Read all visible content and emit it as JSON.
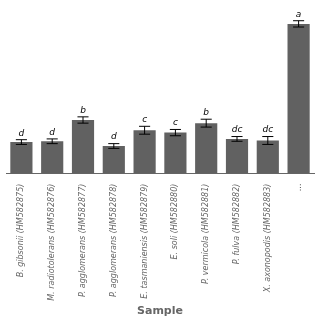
{
  "chart_data": {
    "type": "bar",
    "xlabel": "Sample",
    "categories": [
      "B. gibsonii (HM582875)",
      "M. radiotolerans (HM582876)",
      "P. agglomerans (HM582877)",
      "P. agglomerans (HM582878)",
      "E. tasmaniensis (HM582879)",
      "E. soli (HM582880)",
      "P. vermicola (HM582881)",
      "P. fulva (HM582882)",
      "X. axonopodis (HM582883)",
      "..."
    ],
    "values": [
      20.0,
      20.5,
      34.0,
      17.5,
      27.5,
      26.0,
      32.0,
      22.0,
      21.0,
      95.0
    ],
    "errors": [
      1.5,
      1.5,
      2.0,
      1.5,
      2.5,
      2.0,
      2.5,
      1.5,
      2.5,
      2.0
    ],
    "letters": [
      "d",
      "d",
      "b",
      "d",
      "c",
      "c",
      "b",
      "dc",
      "dc",
      "a"
    ],
    "color": "#616161",
    "ylim": [
      0,
      100
    ],
    "grid": false,
    "tick_labels": "x"
  }
}
